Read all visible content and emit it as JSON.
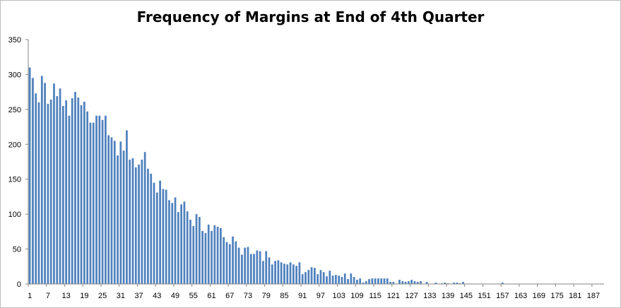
{
  "chart_data": {
    "type": "bar",
    "title": "Frequency of Margins at End of 4th Quarter",
    "xlabel": "",
    "ylabel": "",
    "ylim": [
      0,
      350
    ],
    "yticks": [
      0,
      50,
      100,
      150,
      200,
      250,
      300,
      350
    ],
    "x_tick_labels": [
      1,
      7,
      13,
      19,
      25,
      31,
      37,
      43,
      49,
      55,
      61,
      67,
      73,
      79,
      85,
      91,
      97,
      103,
      109,
      115,
      121,
      127,
      133,
      139,
      145,
      151,
      157,
      163,
      169,
      175,
      181,
      187
    ],
    "x_start": 1,
    "x_end": 190,
    "bar_color": "#4f81bd",
    "grid": false,
    "legend": "none",
    "values": [
      310,
      295,
      273,
      260,
      298,
      288,
      258,
      264,
      287,
      269,
      280,
      255,
      263,
      241,
      266,
      275,
      267,
      256,
      261,
      247,
      231,
      231,
      241,
      241,
      235,
      241,
      213,
      210,
      205,
      184,
      204,
      191,
      220,
      178,
      180,
      167,
      171,
      178,
      189,
      165,
      158,
      145,
      131,
      148,
      136,
      135,
      120,
      116,
      124,
      103,
      114,
      118,
      104,
      92,
      83,
      100,
      96,
      76,
      73,
      85,
      76,
      84,
      82,
      80,
      67,
      60,
      57,
      68,
      61,
      52,
      42,
      52,
      53,
      43,
      43,
      48,
      47,
      33,
      47,
      38,
      28,
      33,
      34,
      31,
      29,
      28,
      31,
      28,
      26,
      31,
      14,
      17,
      20,
      24,
      23,
      14,
      20,
      17,
      11,
      19,
      12,
      13,
      12,
      10,
      15,
      7,
      15,
      10,
      6,
      8,
      2,
      4,
      7,
      8,
      8,
      8,
      8,
      8,
      8,
      3,
      3,
      0,
      6,
      4,
      3,
      4,
      6,
      4,
      3,
      4,
      0,
      3,
      0,
      0,
      2,
      0,
      1,
      2,
      1,
      0,
      2,
      2,
      1,
      3,
      0,
      0,
      0,
      0,
      0,
      0,
      0,
      0,
      0,
      0,
      0,
      0,
      2,
      0,
      0,
      0,
      0,
      0,
      0,
      0,
      0,
      0,
      0,
      0,
      0,
      0,
      0,
      0,
      0,
      0,
      0,
      0,
      0,
      0,
      0,
      0,
      0,
      0,
      0,
      0,
      0,
      0,
      0,
      0,
      0,
      0
    ]
  }
}
